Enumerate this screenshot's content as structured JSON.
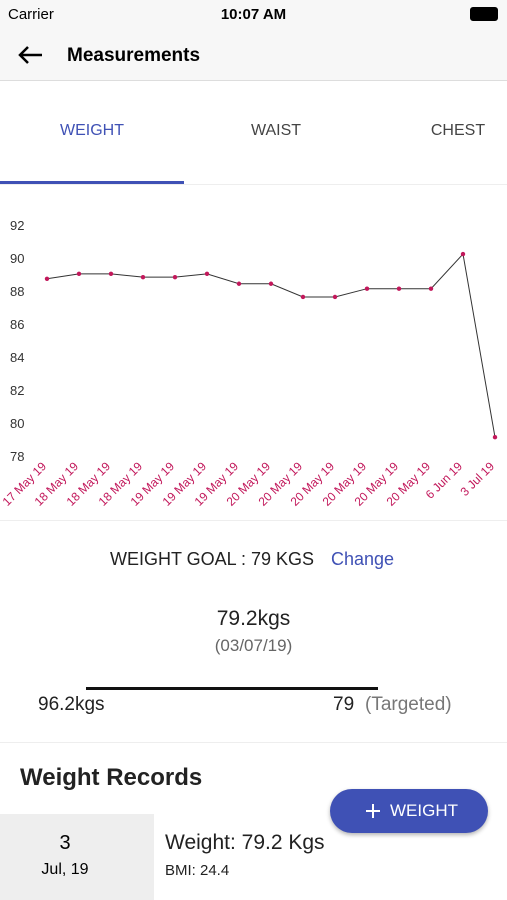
{
  "status_bar": {
    "carrier": "Carrier",
    "time": "10:07 AM"
  },
  "header": {
    "title": "Measurements"
  },
  "tabs": [
    "WEIGHT",
    "WAIST",
    "CHEST"
  ],
  "chart_data": {
    "type": "line",
    "color": "#333333",
    "marker_color": "#c2185b",
    "categories": [
      "17 May 19",
      "18 May 19",
      "18 May 19",
      "18 May 19",
      "19 May 19",
      "19 May 19",
      "19 May 19",
      "20 May 19",
      "20 May 19",
      "20 May 19",
      "20 May 19",
      "20 May 19",
      "20 May 19",
      "6 Jun 19",
      "3 Jul 19"
    ],
    "values": [
      88.8,
      89.1,
      89.1,
      88.9,
      88.9,
      89.1,
      88.5,
      88.5,
      87.7,
      87.7,
      88.2,
      88.2,
      88.2,
      90.3,
      79.2
    ],
    "ylim": [
      78,
      92
    ],
    "yticks": [
      78,
      80,
      82,
      84,
      86,
      88,
      90,
      92
    ]
  },
  "goal": {
    "label": "WEIGHT GOAL : 79 KGS",
    "action": "Change",
    "current": "79.2kgs",
    "date": "(03/07/19)",
    "start": "96.2kgs",
    "target": "79",
    "target_note": "(Targeted)"
  },
  "records": {
    "title": "Weight Records",
    "button": "WEIGHT",
    "items": [
      {
        "day": "3",
        "month": "Jul, 19",
        "weight": "Weight: 79.2 Kgs",
        "bmi": "BMI: 24.4"
      }
    ]
  }
}
